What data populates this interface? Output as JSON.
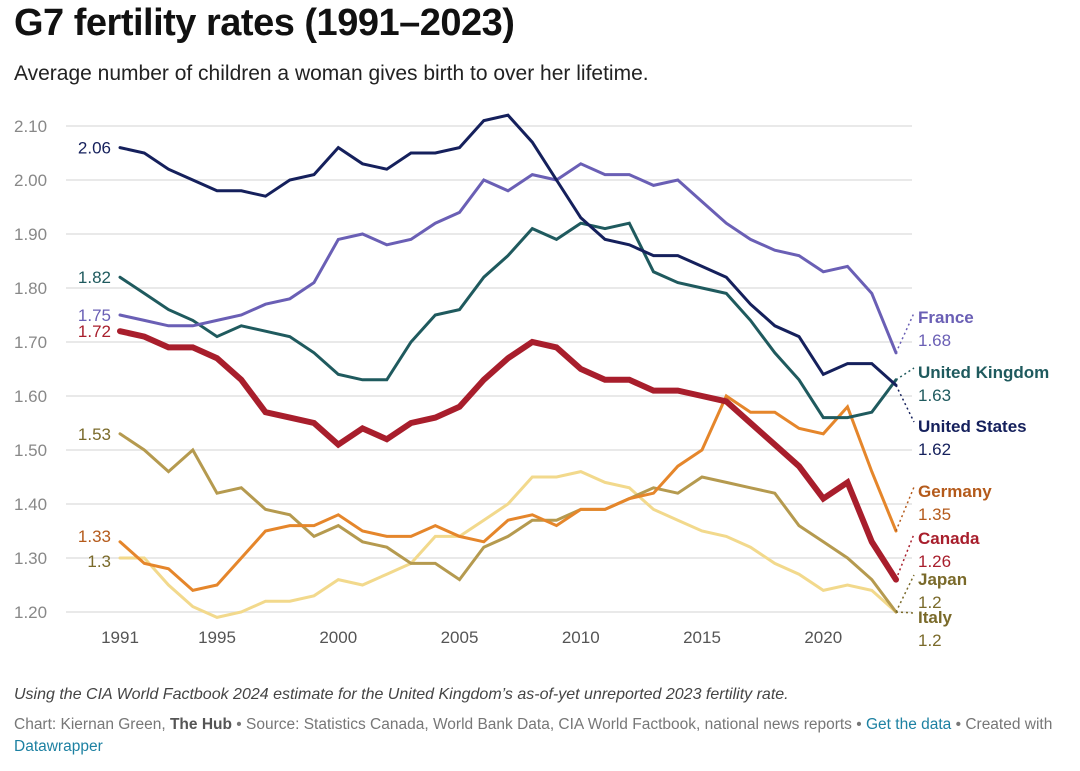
{
  "header": {
    "title": "G7 fertility rates (1991–2023)",
    "subtitle": "Average number of children a woman gives birth to over her lifetime."
  },
  "footer": {
    "note": "Using the CIA World Factbook 2024 estimate for the United Kingdom’s as-of-yet unreported 2023 fertility rate.",
    "chart_prefix": "Chart: Kiernan Green, ",
    "publisher": "The Hub",
    "source": " • Source: Statistics Canada, World Bank Data, CIA World Factbook, national news reports • ",
    "get_data_link": "Get the data",
    "created_with_prefix": " • Created with ",
    "datawrapper_link": "Datawrapper"
  },
  "chart_data": {
    "type": "line",
    "title": "G7 fertility rates (1991–2023)",
    "subtitle": "Average number of children a woman gives birth to over her lifetime.",
    "xlabel": "",
    "ylabel": "",
    "xlim": [
      1991,
      2023
    ],
    "ylim": [
      1.2,
      2.1
    ],
    "grid": true,
    "legend": "direct labels at line ends (right)",
    "y_ticks": [
      "2.10",
      "2.00",
      "1.90",
      "1.80",
      "1.70",
      "1.60",
      "1.50",
      "1.40",
      "1.30",
      "1.20"
    ],
    "y_tick_values": [
      2.1,
      2.0,
      1.9,
      1.8,
      1.7,
      1.6,
      1.5,
      1.4,
      1.3,
      1.2
    ],
    "x_ticks": [
      "1991",
      "1995",
      "2000",
      "2005",
      "2010",
      "2015",
      "2020"
    ],
    "x_tick_values": [
      1991,
      1995,
      2000,
      2005,
      2010,
      2015,
      2020
    ],
    "x": [
      1991,
      1992,
      1993,
      1994,
      1995,
      1996,
      1997,
      1998,
      1999,
      2000,
      2001,
      2002,
      2003,
      2004,
      2005,
      2006,
      2007,
      2008,
      2009,
      2010,
      2011,
      2012,
      2013,
      2014,
      2015,
      2016,
      2017,
      2018,
      2019,
      2020,
      2021,
      2022,
      2023
    ],
    "series": [
      {
        "name": "Italy",
        "color": "#f2d98c",
        "label_color": "#7a6a2a",
        "start_label": "1.3",
        "end_label": "1.2",
        "emphasis": false,
        "values": [
          1.3,
          1.3,
          1.25,
          1.21,
          1.19,
          1.2,
          1.22,
          1.22,
          1.23,
          1.26,
          1.25,
          1.27,
          1.29,
          1.34,
          1.34,
          1.37,
          1.4,
          1.45,
          1.45,
          1.46,
          1.44,
          1.43,
          1.39,
          1.37,
          1.35,
          1.34,
          1.32,
          1.29,
          1.27,
          1.24,
          1.25,
          1.24,
          1.2
        ]
      },
      {
        "name": "Japan",
        "color": "#b59a4f",
        "label_color": "#7a6a2a",
        "start_label": "1.53",
        "end_label": "1.2",
        "emphasis": false,
        "values": [
          1.53,
          1.5,
          1.46,
          1.5,
          1.42,
          1.43,
          1.39,
          1.38,
          1.34,
          1.36,
          1.33,
          1.32,
          1.29,
          1.29,
          1.26,
          1.32,
          1.34,
          1.37,
          1.37,
          1.39,
          1.39,
          1.41,
          1.43,
          1.42,
          1.45,
          1.44,
          1.43,
          1.42,
          1.36,
          1.33,
          1.3,
          1.26,
          1.2
        ]
      },
      {
        "name": "Germany",
        "color": "#e5862b",
        "label_color": "#b45a1b",
        "start_label": "1.33",
        "end_label": "1.35",
        "emphasis": false,
        "values": [
          1.33,
          1.29,
          1.28,
          1.24,
          1.25,
          1.3,
          1.35,
          1.36,
          1.36,
          1.38,
          1.35,
          1.34,
          1.34,
          1.36,
          1.34,
          1.33,
          1.37,
          1.38,
          1.36,
          1.39,
          1.39,
          1.41,
          1.42,
          1.47,
          1.5,
          1.6,
          1.57,
          1.57,
          1.54,
          1.53,
          1.58,
          1.46,
          1.35
        ]
      },
      {
        "name": "United Kingdom",
        "color": "#1f5a5e",
        "label_color": "#1f5a5e",
        "start_label": "1.82",
        "end_label": "1.63",
        "emphasis": false,
        "values": [
          1.82,
          1.79,
          1.76,
          1.74,
          1.71,
          1.73,
          1.72,
          1.71,
          1.68,
          1.64,
          1.63,
          1.63,
          1.7,
          1.75,
          1.76,
          1.82,
          1.86,
          1.91,
          1.89,
          1.92,
          1.91,
          1.92,
          1.83,
          1.81,
          1.8,
          1.79,
          1.74,
          1.68,
          1.63,
          1.56,
          1.56,
          1.57,
          1.63
        ]
      },
      {
        "name": "France",
        "color": "#6a5fb5",
        "label_color": "#6a5fb5",
        "start_label": "1.75",
        "end_label": "1.68",
        "emphasis": false,
        "values": [
          1.75,
          1.74,
          1.73,
          1.73,
          1.74,
          1.75,
          1.77,
          1.78,
          1.81,
          1.89,
          1.9,
          1.88,
          1.89,
          1.92,
          1.94,
          2.0,
          1.98,
          2.01,
          2.0,
          2.03,
          2.01,
          2.01,
          1.99,
          2.0,
          1.96,
          1.92,
          1.89,
          1.87,
          1.86,
          1.83,
          1.84,
          1.79,
          1.68
        ]
      },
      {
        "name": "United States",
        "color": "#15205c",
        "label_color": "#15205c",
        "start_label": "2.06",
        "end_label": "1.62",
        "emphasis": false,
        "values": [
          2.06,
          2.05,
          2.02,
          2.0,
          1.98,
          1.98,
          1.97,
          2.0,
          2.01,
          2.06,
          2.03,
          2.02,
          2.05,
          2.05,
          2.06,
          2.11,
          2.12,
          2.07,
          2.0,
          1.93,
          1.89,
          1.88,
          1.86,
          1.86,
          1.84,
          1.82,
          1.77,
          1.73,
          1.71,
          1.64,
          1.66,
          1.66,
          1.62
        ]
      },
      {
        "name": "Canada",
        "color": "#a81e2c",
        "label_color": "#a81e2c",
        "start_label": "1.72",
        "end_label": "1.26",
        "emphasis": true,
        "values": [
          1.72,
          1.71,
          1.69,
          1.69,
          1.67,
          1.63,
          1.57,
          1.56,
          1.55,
          1.51,
          1.54,
          1.52,
          1.55,
          1.56,
          1.58,
          1.63,
          1.67,
          1.7,
          1.69,
          1.65,
          1.63,
          1.63,
          1.61,
          1.61,
          1.6,
          1.59,
          1.55,
          1.51,
          1.47,
          1.41,
          1.44,
          1.33,
          1.26
        ]
      }
    ],
    "end_labels_order": [
      "France",
      "United Kingdom",
      "United States",
      "Germany",
      "Canada",
      "Japan",
      "Italy"
    ]
  }
}
